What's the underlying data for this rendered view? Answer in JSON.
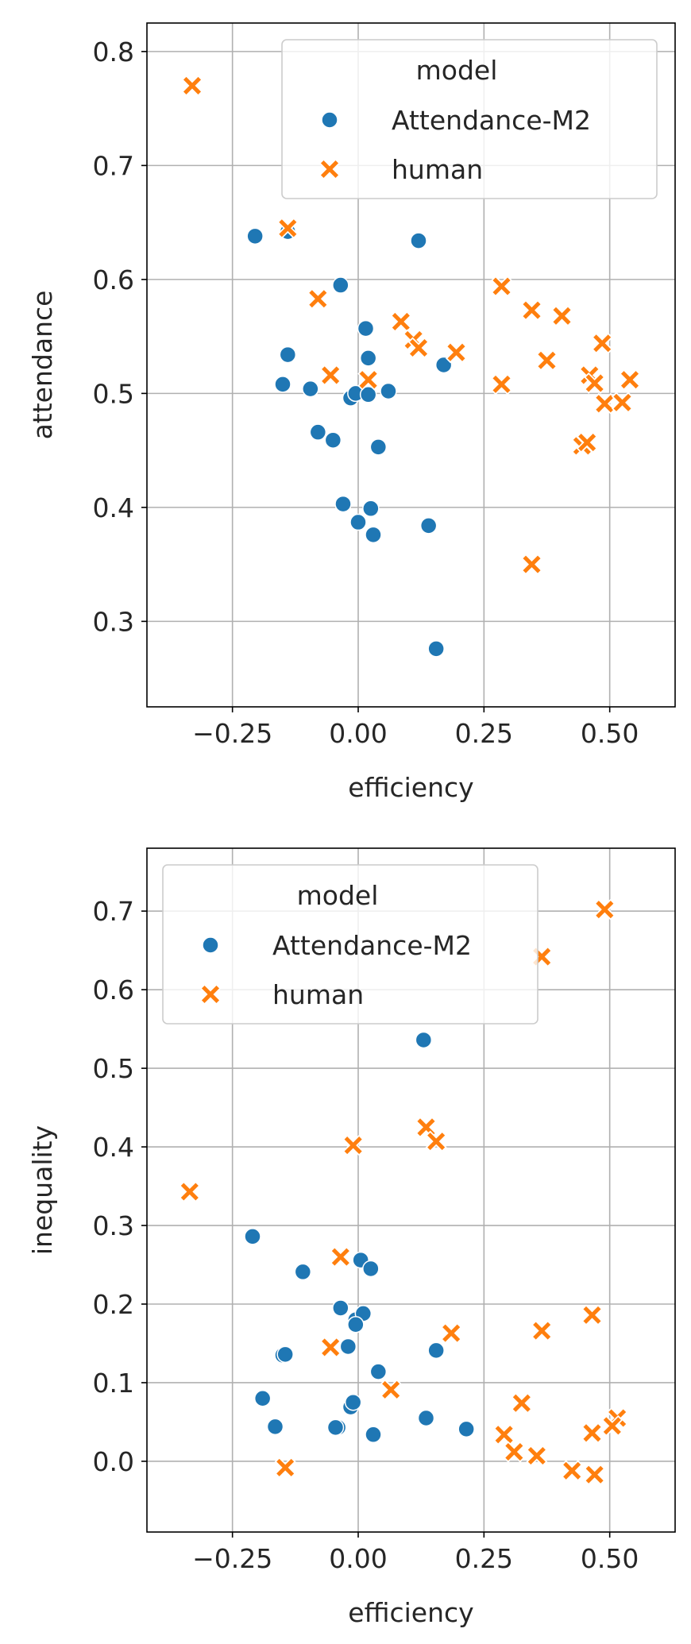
{
  "chart_data": [
    {
      "type": "scatter",
      "xlabel": "efficiency",
      "ylabel": "attendance",
      "xlim": [
        -0.42,
        0.63
      ],
      "ylim": [
        0.225,
        0.825
      ],
      "xticks": [
        -0.25,
        0.0,
        0.25,
        0.5
      ],
      "xtick_labels": [
        "−0.25",
        "0.00",
        "0.25",
        "0.50"
      ],
      "yticks": [
        0.3,
        0.4,
        0.5,
        0.6,
        0.7,
        0.8
      ],
      "ytick_labels": [
        "0.3",
        "0.4",
        "0.5",
        "0.6",
        "0.7",
        "0.8"
      ],
      "grid": true,
      "legend": {
        "title": "model",
        "placement": "top-right"
      },
      "series": [
        {
          "name": "Attendance-M2",
          "marker": "circle",
          "color": "#1f77b4",
          "x": [
            -0.205,
            -0.14,
            0.12,
            -0.035,
            0.015,
            0.02,
            -0.14,
            0.17,
            -0.15,
            -0.095,
            -0.015,
            -0.005,
            0.02,
            0.06,
            -0.08,
            -0.05,
            0.04,
            -0.03,
            0.025,
            0.0,
            0.14,
            0.03,
            0.155
          ],
          "y": [
            0.638,
            0.642,
            0.634,
            0.595,
            0.557,
            0.531,
            0.534,
            0.525,
            0.508,
            0.504,
            0.496,
            0.5,
            0.499,
            0.502,
            0.466,
            0.459,
            0.453,
            0.403,
            0.399,
            0.387,
            0.384,
            0.376,
            0.276
          ]
        },
        {
          "name": "human",
          "marker": "x",
          "color": "#ff7f0e",
          "x": [
            -0.33,
            -0.14,
            -0.08,
            0.085,
            0.11,
            0.12,
            0.195,
            0.285,
            0.345,
            0.405,
            0.485,
            0.375,
            0.46,
            0.47,
            0.54,
            -0.055,
            0.02,
            0.285,
            0.49,
            0.525,
            0.445,
            0.455,
            0.345
          ],
          "y": [
            0.77,
            0.645,
            0.583,
            0.563,
            0.547,
            0.54,
            0.536,
            0.594,
            0.573,
            0.568,
            0.544,
            0.529,
            0.516,
            0.509,
            0.512,
            0.516,
            0.512,
            0.508,
            0.491,
            0.492,
            0.454,
            0.457,
            0.35
          ]
        }
      ]
    },
    {
      "type": "scatter",
      "xlabel": "efficiency",
      "ylabel": "inequality",
      "xlim": [
        -0.42,
        0.63
      ],
      "ylim": [
        -0.09,
        0.78
      ],
      "xticks": [
        -0.25,
        0.0,
        0.25,
        0.5
      ],
      "xtick_labels": [
        "−0.25",
        "0.00",
        "0.25",
        "0.50"
      ],
      "yticks": [
        0.0,
        0.1,
        0.2,
        0.3,
        0.4,
        0.5,
        0.6,
        0.7
      ],
      "ytick_labels": [
        "0.0",
        "0.1",
        "0.2",
        "0.3",
        "0.4",
        "0.5",
        "0.6",
        "0.7"
      ],
      "grid": true,
      "legend": {
        "title": "model",
        "placement": "top-left"
      },
      "series": [
        {
          "name": "Attendance-M2",
          "marker": "circle",
          "color": "#1f77b4",
          "x": [
            0.13,
            -0.21,
            -0.11,
            0.005,
            0.025,
            -0.035,
            -0.005,
            0.01,
            -0.005,
            -0.02,
            0.155,
            -0.15,
            -0.145,
            0.04,
            -0.19,
            -0.165,
            -0.015,
            -0.01,
            0.135,
            -0.04,
            0.215,
            0.03,
            -0.045
          ],
          "y": [
            0.536,
            0.286,
            0.241,
            0.256,
            0.245,
            0.195,
            0.18,
            0.188,
            0.174,
            0.146,
            0.141,
            0.135,
            0.136,
            0.114,
            0.08,
            0.044,
            0.069,
            0.075,
            0.055,
            0.043,
            0.041,
            0.034,
            0.043
          ]
        },
        {
          "name": "human",
          "marker": "x",
          "color": "#ff7f0e",
          "x": [
            0.49,
            0.365,
            0.135,
            0.155,
            -0.01,
            -0.335,
            -0.035,
            0.185,
            0.365,
            0.465,
            -0.055,
            0.065,
            0.325,
            0.29,
            0.31,
            0.355,
            0.515,
            0.505,
            0.465,
            0.425,
            0.47,
            -0.145
          ],
          "y": [
            0.702,
            0.642,
            0.425,
            0.407,
            0.402,
            0.343,
            0.26,
            0.163,
            0.166,
            0.186,
            0.145,
            0.091,
            0.074,
            0.034,
            0.012,
            0.007,
            0.055,
            0.045,
            0.036,
            -0.012,
            -0.017,
            -0.008
          ]
        }
      ]
    }
  ]
}
